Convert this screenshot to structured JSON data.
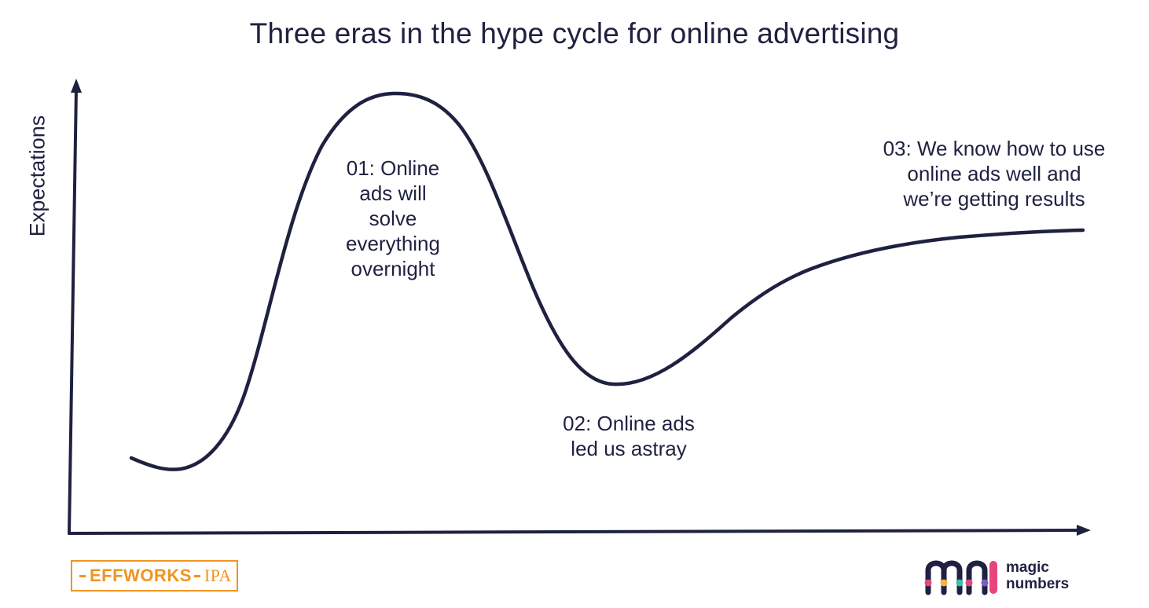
{
  "title": "Three eras in the hype cycle for online advertising",
  "y_axis_label": "Expectations",
  "annotations": {
    "era1": [
      "01: Online",
      "ads will",
      "solve",
      "everything",
      "overnight"
    ],
    "era2": [
      "02: Online ads",
      "led us astray"
    ],
    "era3": [
      "03: We know how to use",
      "online ads well and",
      "we’re getting results"
    ]
  },
  "logos": {
    "effworks": "EFFWORKS",
    "ipa": "IPA",
    "magic_line1": "magic",
    "magic_line2": "numbers"
  },
  "colors": {
    "ink": "#1f2141",
    "effworks_orange": "#f0941f",
    "magic_dot_pink": "#e8457c",
    "magic_dot_yellow": "#f4b63f",
    "magic_dot_teal": "#3bbfad",
    "magic_dot_purple": "#7c5cc4"
  }
}
